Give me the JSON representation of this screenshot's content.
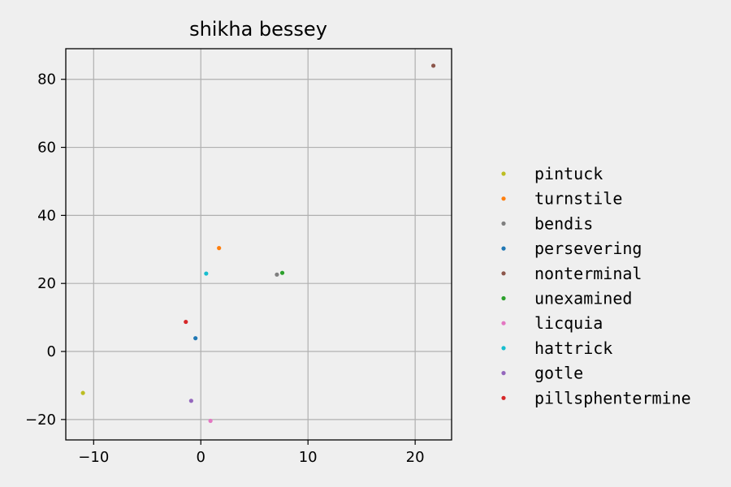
{
  "chart_data": {
    "type": "scatter",
    "title": "shikha bessey",
    "xlabel": "",
    "ylabel": "",
    "xlim": [
      -12.6,
      23.4
    ],
    "ylim": [
      -26,
      89
    ],
    "x_ticks": [
      -10,
      0,
      10,
      20
    ],
    "y_ticks": [
      -20,
      0,
      20,
      40,
      60,
      80
    ],
    "x_tick_labels": [
      "−10",
      "0",
      "10",
      "20"
    ],
    "y_tick_labels": [
      "−20",
      "0",
      "20",
      "40",
      "60",
      "80"
    ],
    "grid": true,
    "legend_position": "right",
    "series": [
      {
        "name": "pintuck",
        "color": "#bcbd22",
        "points": [
          {
            "x": -11.0,
            "y": -12.2
          }
        ]
      },
      {
        "name": "turnstile",
        "color": "#ff7f0e",
        "points": [
          {
            "x": 1.7,
            "y": 30.4
          }
        ]
      },
      {
        "name": "bendis",
        "color": "#7f7f7f",
        "points": [
          {
            "x": 7.1,
            "y": 22.6
          }
        ]
      },
      {
        "name": "persevering",
        "color": "#1f77b4",
        "points": [
          {
            "x": -0.5,
            "y": 3.9
          }
        ]
      },
      {
        "name": "nonterminal",
        "color": "#8c564b",
        "points": [
          {
            "x": 21.7,
            "y": 84.0
          }
        ]
      },
      {
        "name": "unexamined",
        "color": "#2ca02c",
        "points": [
          {
            "x": 7.6,
            "y": 23.1
          }
        ]
      },
      {
        "name": "licquia",
        "color": "#e377c2",
        "points": [
          {
            "x": 0.9,
            "y": -20.4
          }
        ]
      },
      {
        "name": "hattrick",
        "color": "#17becf",
        "points": [
          {
            "x": 0.5,
            "y": 22.9
          }
        ]
      },
      {
        "name": "gotle",
        "color": "#9467bd",
        "points": [
          {
            "x": -0.9,
            "y": -14.5
          }
        ]
      },
      {
        "name": "pillsphentermine",
        "color": "#d62728",
        "points": [
          {
            "x": -1.4,
            "y": 8.7
          }
        ]
      }
    ]
  }
}
